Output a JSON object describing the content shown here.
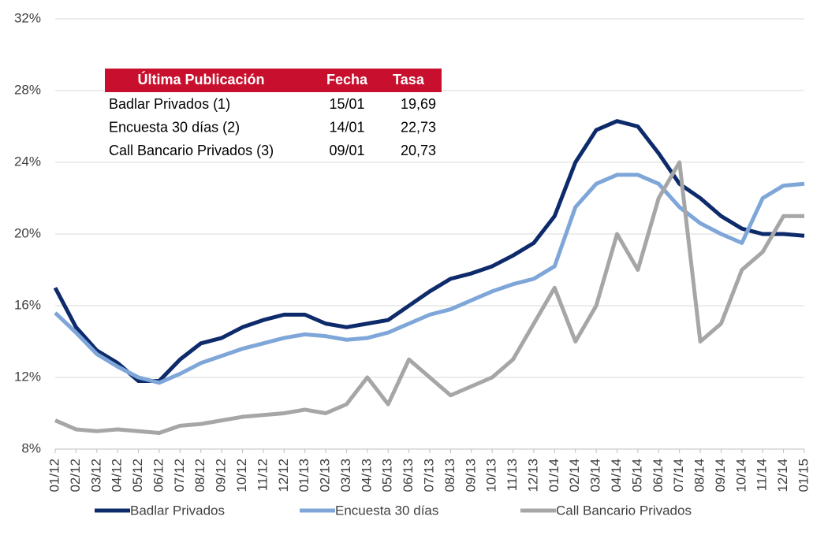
{
  "chart_data": {
    "type": "line",
    "categories": [
      "01/12",
      "02/12",
      "03/12",
      "04/12",
      "05/12",
      "06/12",
      "07/12",
      "08/12",
      "09/12",
      "10/12",
      "11/12",
      "12/12",
      "01/13",
      "02/13",
      "03/13",
      "04/13",
      "05/13",
      "06/13",
      "07/13",
      "08/13",
      "09/13",
      "10/13",
      "11/13",
      "12/13",
      "01/14",
      "02/14",
      "03/14",
      "04/14",
      "05/14",
      "06/14",
      "07/14",
      "08/14",
      "09/14",
      "10/14",
      "11/14",
      "12/14",
      "01/15"
    ],
    "series": [
      {
        "name": "Badlar Privados",
        "color": "#0d2a6b",
        "values": [
          17.0,
          14.8,
          13.5,
          12.8,
          11.8,
          11.8,
          13.0,
          13.9,
          14.2,
          14.8,
          15.2,
          15.5,
          15.5,
          15.0,
          14.8,
          15.0,
          15.2,
          16.0,
          16.8,
          17.5,
          17.8,
          18.2,
          18.8,
          19.5,
          21.0,
          24.0,
          25.8,
          26.3,
          26.0,
          24.5,
          22.8,
          22.0,
          21.0,
          20.3,
          20.0,
          20.0,
          19.9
        ]
      },
      {
        "name": "Encuesta 30 días",
        "color": "#7ea6d8",
        "values": [
          15.6,
          14.5,
          13.3,
          12.6,
          12.0,
          11.7,
          12.2,
          12.8,
          13.2,
          13.6,
          13.9,
          14.2,
          14.4,
          14.3,
          14.1,
          14.2,
          14.5,
          15.0,
          15.5,
          15.8,
          16.3,
          16.8,
          17.2,
          17.5,
          18.2,
          21.5,
          22.8,
          23.3,
          23.3,
          22.8,
          21.5,
          20.6,
          20.0,
          19.5,
          22.0,
          22.7,
          22.8
        ]
      },
      {
        "name": "Call Bancario Privados",
        "color": "#a6a6a6",
        "values": [
          9.6,
          9.1,
          9.0,
          9.1,
          9.0,
          8.9,
          9.3,
          9.4,
          9.6,
          9.8,
          9.9,
          10.0,
          10.2,
          10.0,
          10.5,
          12.0,
          10.5,
          13.0,
          12.0,
          11.0,
          11.5,
          12.0,
          13.0,
          15.0,
          17.0,
          14.0,
          16.0,
          20.0,
          18.0,
          22.0,
          24.0,
          14.0,
          15.0,
          18.0,
          19.0,
          21.0,
          21.0
        ]
      }
    ],
    "ylim": [
      8,
      32
    ],
    "yticks": [
      {
        "value": 8,
        "label": "8%"
      },
      {
        "value": 12,
        "label": "12%"
      },
      {
        "value": 16,
        "label": "16%"
      },
      {
        "value": 20,
        "label": "20%"
      },
      {
        "value": 24,
        "label": "24%"
      },
      {
        "value": 28,
        "label": "28%"
      },
      {
        "value": 32,
        "label": "32%"
      }
    ],
    "grid": true
  },
  "table": {
    "header": [
      "Última Publicación",
      "Fecha",
      "Tasa"
    ],
    "rows": [
      [
        "Badlar Privados (1)",
        "15/01",
        "19,69"
      ],
      [
        "Encuesta 30 días (2)",
        "14/01",
        "22,73"
      ],
      [
        "Call Bancario Privados (3)",
        "09/01",
        "20,73"
      ]
    ]
  }
}
